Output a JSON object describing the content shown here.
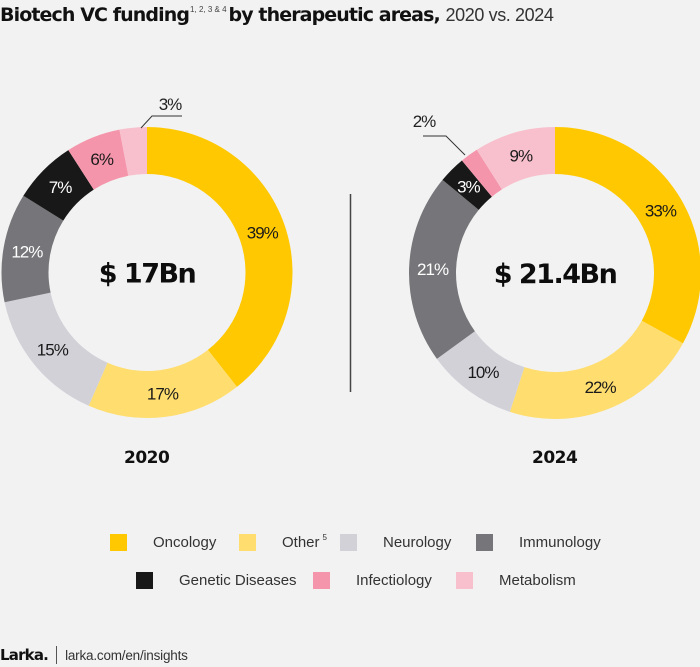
{
  "title": {
    "bold": "Biotech VC funding",
    "superscript": "1, 2, 3 & 4",
    "bold_rest": "by therapeutic areas,",
    "light": "2020 vs. 2024"
  },
  "colors": {
    "Oncology": "#ffc800",
    "Other": "#ffdd6e",
    "Neurology": "#d2d1d8",
    "Immunology": "#767579",
    "Genetic Diseases": "#181818",
    "Infectiology": "#f595ab",
    "Metabolism": "#f8c0cd",
    "background": "#f2f2f2"
  },
  "chart_data": [
    {
      "type": "pie",
      "subtype": "donut",
      "title": "2020",
      "center_label": "$ 17Bn",
      "categories": [
        "Oncology",
        "Other",
        "Neurology",
        "Immunology",
        "Genetic Diseases",
        "Infectiology",
        "Metabolism"
      ],
      "values": [
        39,
        17,
        15,
        12,
        7,
        6,
        3
      ],
      "labels": [
        "39%",
        "17%",
        "15%",
        "12%",
        "7%",
        "6%",
        "3%"
      ],
      "unit": "%",
      "order": "clockwise from top"
    },
    {
      "type": "pie",
      "subtype": "donut",
      "title": "2024",
      "center_label": "$ 21.4Bn",
      "categories": [
        "Oncology",
        "Other",
        "Neurology",
        "Immunology",
        "Genetic Diseases",
        "Infectiology",
        "Metabolism"
      ],
      "values": [
        33,
        22,
        10,
        21,
        3,
        2,
        9
      ],
      "labels": [
        "33%",
        "22%",
        "10%",
        "21%",
        "3%",
        "2%",
        "9%"
      ],
      "unit": "%",
      "order": "clockwise from top"
    }
  ],
  "legend": {
    "placement": "bottom",
    "items": [
      {
        "label": "Oncology",
        "sup": ""
      },
      {
        "label": "Other",
        "sup": "5"
      },
      {
        "label": "Neurology",
        "sup": ""
      },
      {
        "label": "Immunology",
        "sup": ""
      },
      {
        "label": "Genetic Diseases",
        "sup": ""
      },
      {
        "label": "Infectiology",
        "sup": ""
      },
      {
        "label": "Metabolism",
        "sup": ""
      }
    ]
  },
  "footer": {
    "brand": "Larka.",
    "link": "larka.com/en/insights"
  }
}
